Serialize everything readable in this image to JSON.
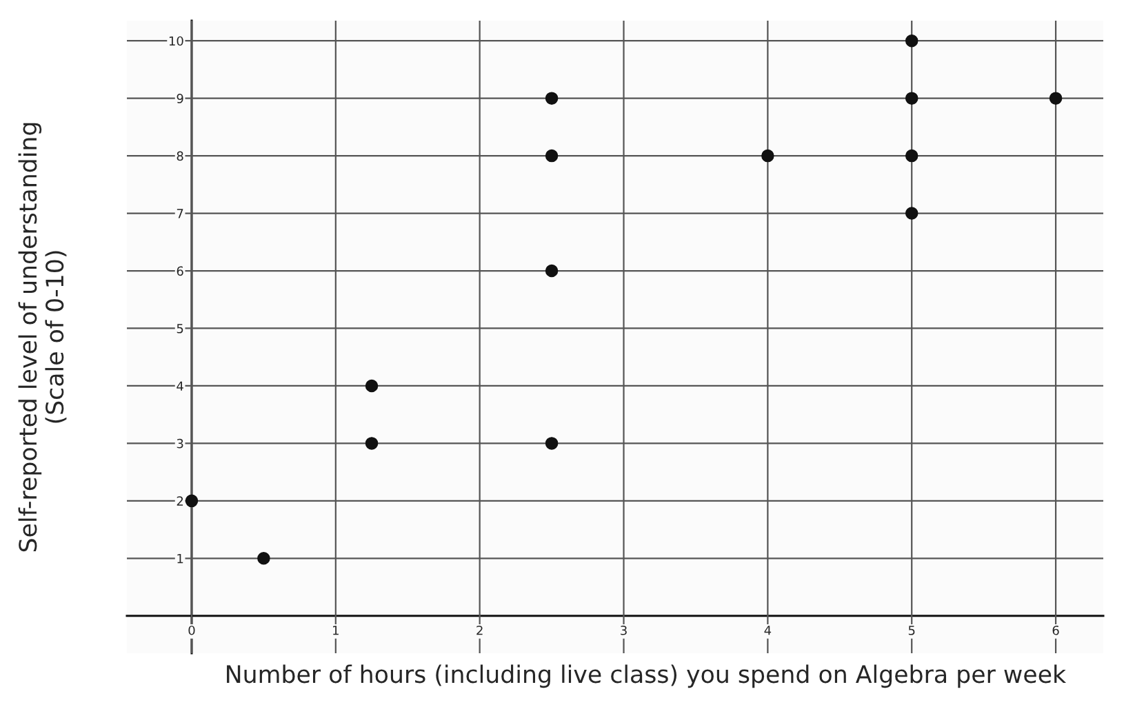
{
  "chart_data": {
    "type": "scatter",
    "xlabel": "Number of hours (including live class) you spend on Algebra per week",
    "ylabel": "Self-reported level of understanding\n(Scale of 0-10)",
    "x": [
      0,
      0.5,
      1.25,
      1.25,
      2.5,
      2.5,
      2.5,
      2.5,
      4,
      5,
      5,
      5,
      5,
      6
    ],
    "values": [
      2,
      1,
      4,
      3,
      9,
      8,
      6,
      3,
      8,
      10,
      9,
      8,
      7,
      9
    ],
    "color": "#111111",
    "marker": "circle",
    "xlim": [
      -0.45,
      6.33
    ],
    "ylim": [
      -0.65,
      10.35
    ],
    "xticks": [
      0,
      1,
      2,
      3,
      4,
      5,
      6
    ],
    "yticks": [
      1,
      2,
      3,
      4,
      5,
      6,
      7,
      8,
      9,
      10
    ],
    "grid": true
  }
}
